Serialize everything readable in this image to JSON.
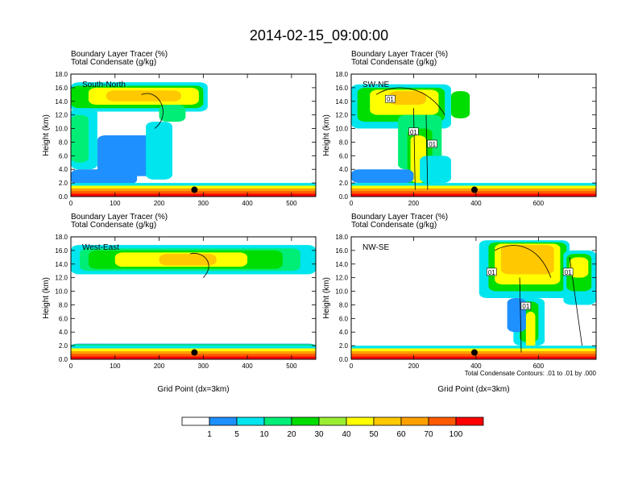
{
  "title": "2014-02-15_09:00:00",
  "subtitle_line1": "Boundary Layer Tracer   (%)",
  "subtitle_line2": "Total Condensate   (g/kg)",
  "ylabel": "Height (km)",
  "xlabel": "Grid Point (dx=3km)",
  "y_ticks": [
    "0.0",
    "2.0",
    "4.0",
    "6.0",
    "8.0",
    "10.0",
    "12.0",
    "14.0",
    "16.0",
    "18.0"
  ],
  "contour_note": "Total Condensate Contours: .01 to .01 by .000",
  "contour_label": "01",
  "colorbar": {
    "colors": [
      "#ffffff",
      "#1e90ff",
      "#00e5ee",
      "#00ee76",
      "#00dd00",
      "#9aee32",
      "#ffff00",
      "#ffc800",
      "#ffa000",
      "#ff5a00",
      "#ff0000"
    ],
    "labels": [
      "1",
      "5",
      "10",
      "20",
      "30",
      "40",
      "50",
      "60",
      "70",
      "100"
    ]
  },
  "chart_data": [
    {
      "type": "heatmap",
      "panel": "South-North",
      "xlim": [
        0,
        555
      ],
      "ylim": [
        0,
        18
      ],
      "x_ticks": [
        "0",
        "100",
        "200",
        "300",
        "400",
        "500"
      ],
      "marker": {
        "x": 280,
        "y": 1.0
      },
      "contour_labels": [],
      "show_xlabel": false
    },
    {
      "type": "heatmap",
      "panel": "SW-NE",
      "xlim": [
        0,
        785
      ],
      "ylim": [
        0,
        18
      ],
      "x_ticks": [
        "0",
        "200",
        "400",
        "600"
      ],
      "marker": {
        "x": 395,
        "y": 1.0
      },
      "contour_labels": [
        {
          "x": 125,
          "y": 14.3
        },
        {
          "x": 200,
          "y": 9.5
        },
        {
          "x": 260,
          "y": 7.7
        }
      ],
      "show_xlabel": false
    },
    {
      "type": "heatmap",
      "panel": "West-East",
      "xlim": [
        0,
        555
      ],
      "ylim": [
        0,
        18
      ],
      "x_ticks": [
        "0",
        "100",
        "200",
        "300",
        "400",
        "500"
      ],
      "marker": {
        "x": 280,
        "y": 1.0
      },
      "contour_labels": [],
      "show_xlabel": true
    },
    {
      "type": "heatmap",
      "panel": "NW-SE",
      "xlim": [
        0,
        785
      ],
      "ylim": [
        0,
        18
      ],
      "x_ticks": [
        "0",
        "200",
        "400",
        "600"
      ],
      "marker": {
        "x": 395,
        "y": 1.0
      },
      "contour_labels": [
        {
          "x": 450,
          "y": 12.8
        },
        {
          "x": 560,
          "y": 7.8
        },
        {
          "x": 695,
          "y": 12.8
        }
      ],
      "show_xlabel": true,
      "show_note": true
    }
  ]
}
